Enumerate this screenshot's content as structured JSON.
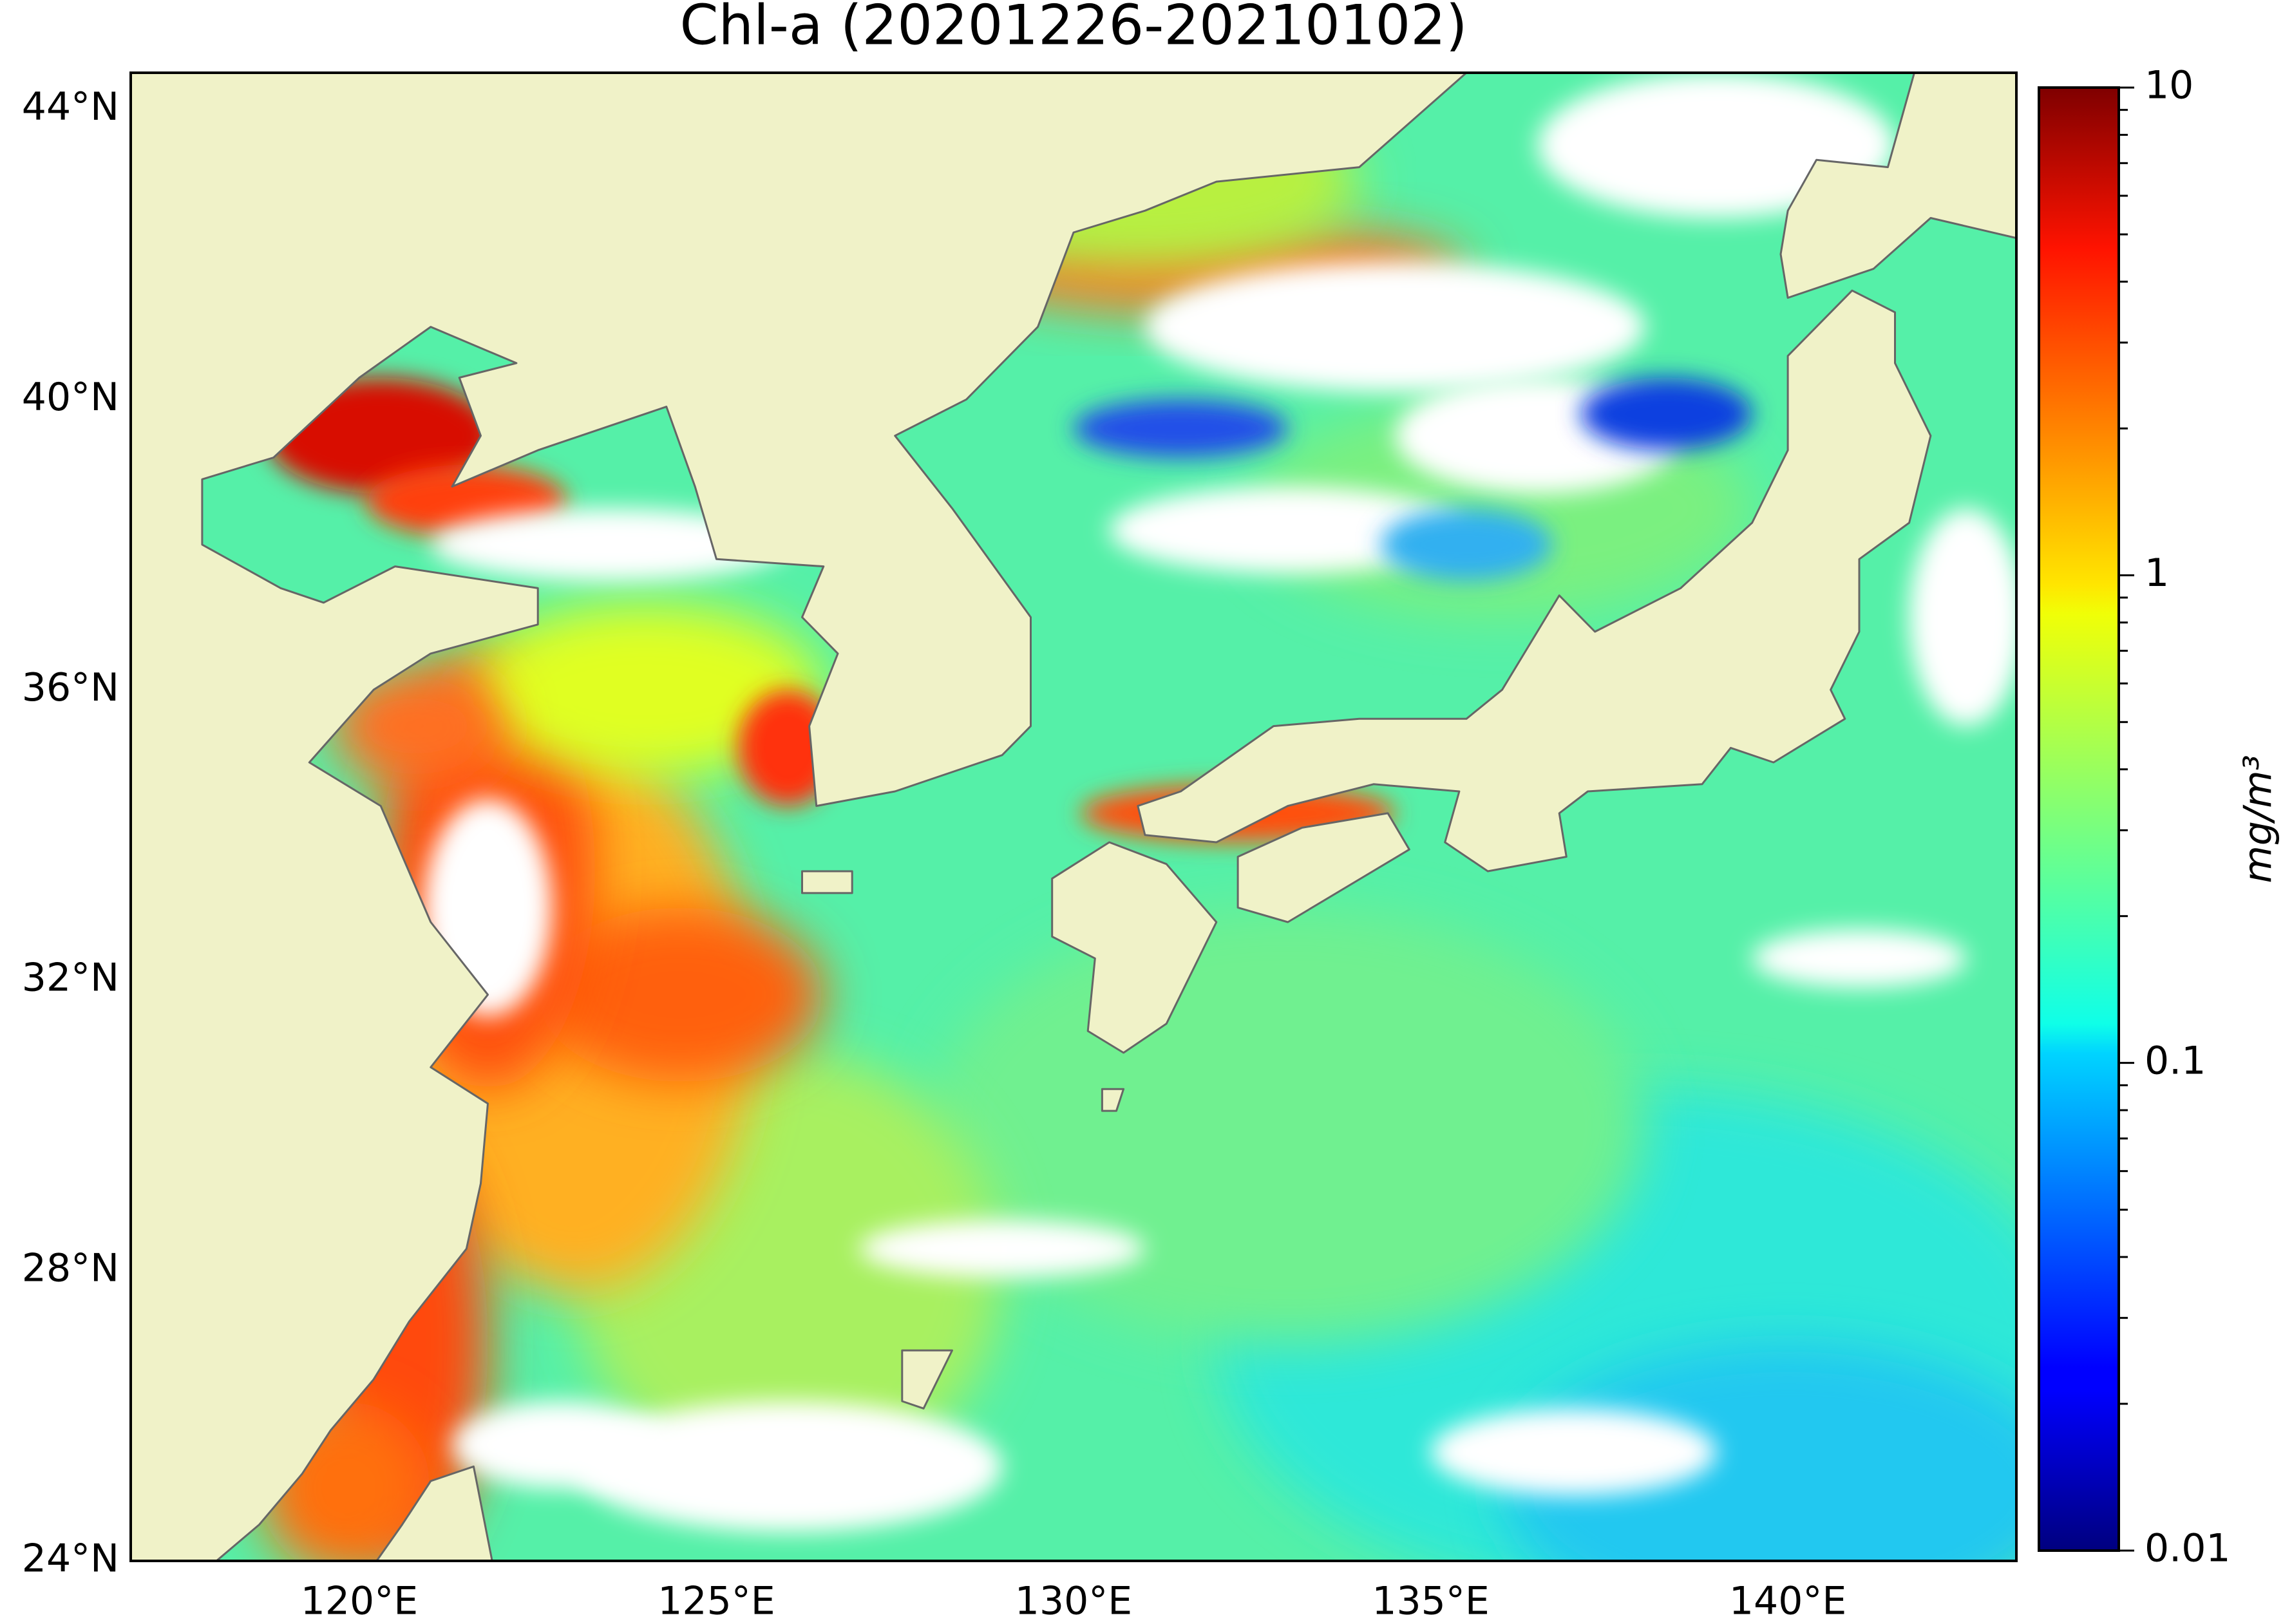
{
  "chart_data": {
    "type": "map",
    "title": "Chl-a (20201226-20210102)",
    "xlim": [
      116.8,
      143.2
    ],
    "ylim": [
      24,
      44.5
    ],
    "xticks": [
      {
        "value": 120,
        "label": "120°E"
      },
      {
        "value": 125,
        "label": "125°E"
      },
      {
        "value": 130,
        "label": "130°E"
      },
      {
        "value": 135,
        "label": "135°E"
      },
      {
        "value": 140,
        "label": "140°E"
      }
    ],
    "yticks": [
      {
        "value": 24,
        "label": "24°N"
      },
      {
        "value": 28,
        "label": "28°N"
      },
      {
        "value": 32,
        "label": "32°N"
      },
      {
        "value": 36,
        "label": "36°N"
      },
      {
        "value": 40,
        "label": "40°N"
      },
      {
        "value": 44,
        "label": "44°N"
      }
    ],
    "colorbar": {
      "label": "mg/m³",
      "scale": "log",
      "lim": [
        0.01,
        10
      ],
      "ticks": [
        0.01,
        0.1,
        1,
        10
      ],
      "colormap": "jet"
    },
    "land_color": "#f0f2c8"
  }
}
